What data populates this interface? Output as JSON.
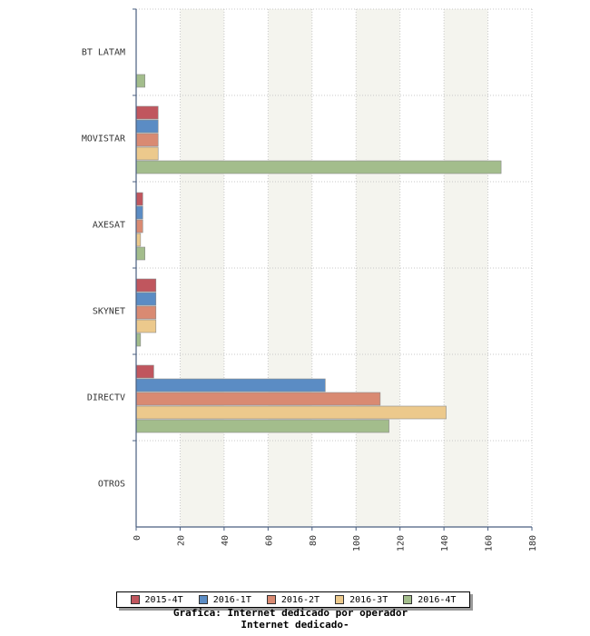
{
  "chart_data": {
    "type": "bar",
    "orientation": "horizontal",
    "categories": [
      "BT LATAM",
      "MOVISTAR",
      "AXESAT",
      "SKYNET",
      "DIRECTV",
      "OTROS"
    ],
    "series": [
      {
        "name": "2015-4T",
        "color": "#c0565e",
        "values": [
          0,
          10,
          3,
          9,
          8,
          0
        ]
      },
      {
        "name": "2016-1T",
        "color": "#5b8cc4",
        "values": [
          0,
          10,
          3,
          9,
          86,
          0
        ]
      },
      {
        "name": "2016-2T",
        "color": "#d98a72",
        "values": [
          0,
          10,
          3,
          9,
          111,
          0
        ]
      },
      {
        "name": "2016-3T",
        "color": "#ecc98c",
        "values": [
          0,
          10,
          2,
          9,
          141,
          0
        ]
      },
      {
        "name": "2016-4T",
        "color": "#a3bd8c",
        "values": [
          4,
          166,
          4,
          2,
          115,
          0
        ]
      }
    ],
    "xlim": [
      0,
      180
    ],
    "ticks": [
      0,
      20,
      40,
      60,
      80,
      100,
      120,
      140,
      160,
      180
    ],
    "grid": true,
    "legend_position": "bottom",
    "title_lines": [
      "Grafica: Internet dedicado por operador",
      "Internet dedicado-"
    ]
  }
}
